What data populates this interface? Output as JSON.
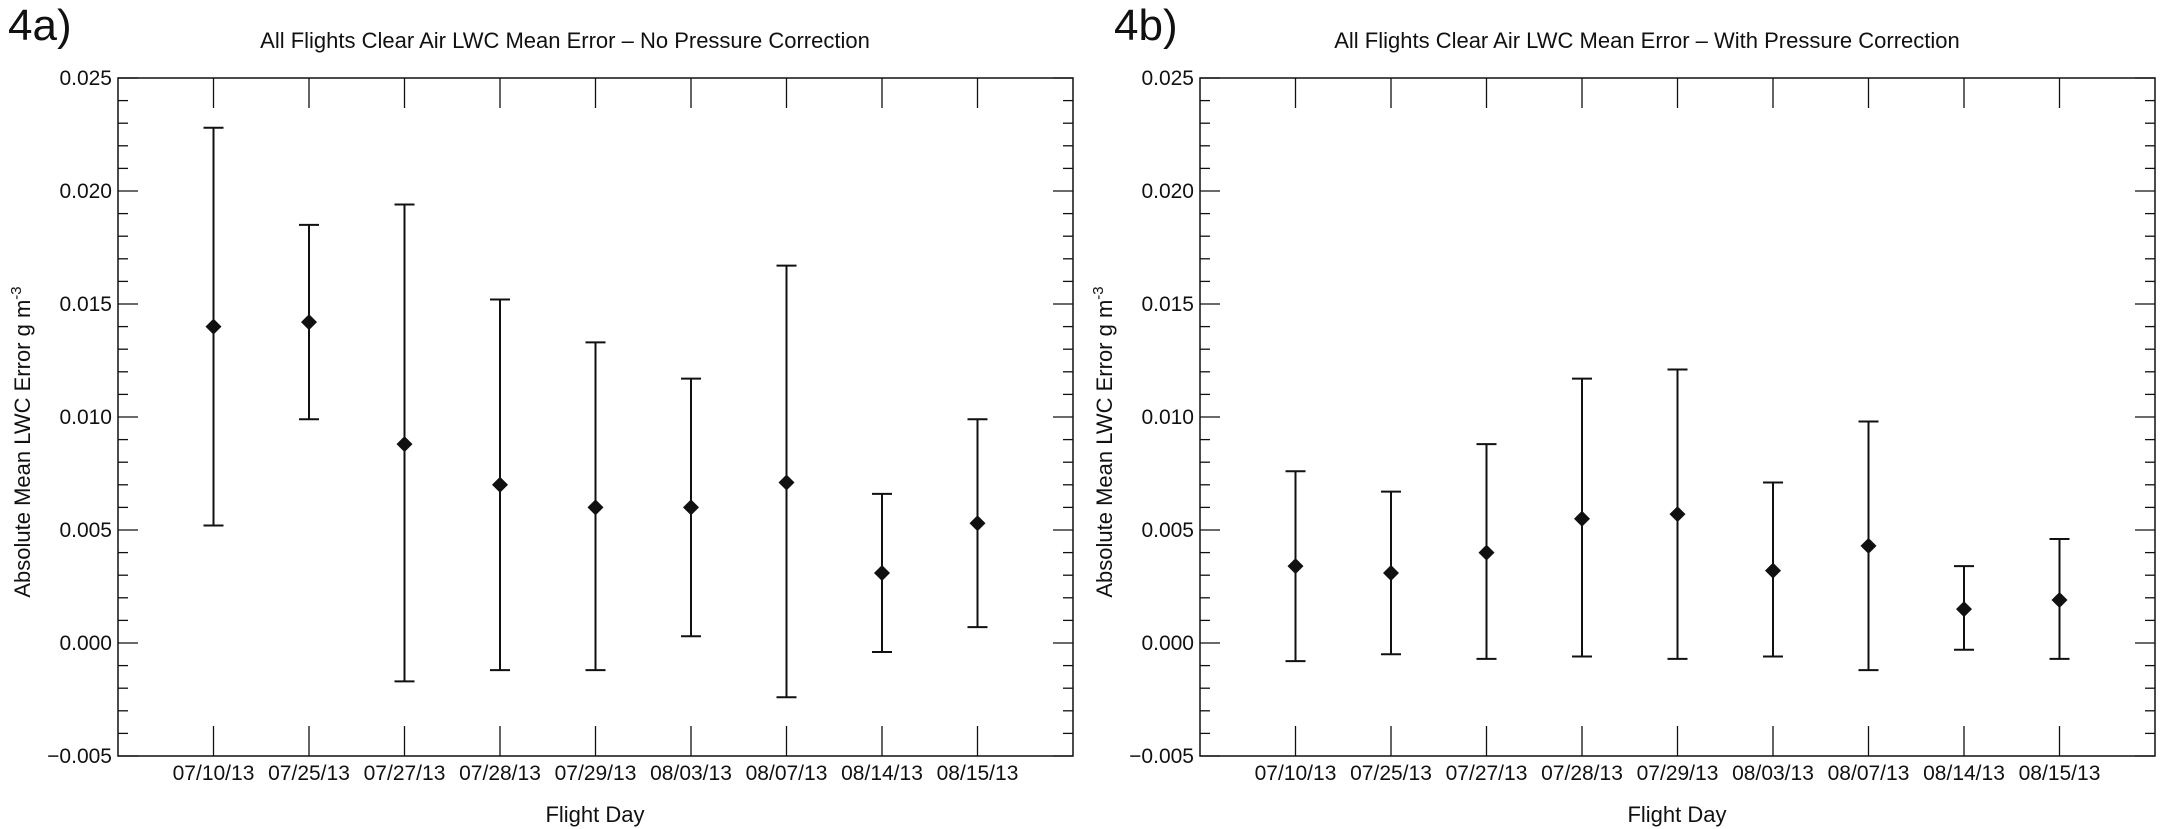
{
  "chart_data": [
    {
      "type": "scatter",
      "panel_label": "4a)",
      "title": "All Flights Clear Air LWC Mean Error – No Pressure Correction",
      "xlabel": "Flight Day",
      "ylabel": "Absolute Mean LWC Error g m",
      "ylabel_exponent": "-3",
      "ylim": [
        -0.005,
        0.025
      ],
      "yticks": [
        "−0.005",
        "0.000",
        "0.005",
        "0.010",
        "0.015",
        "0.020",
        "0.025"
      ],
      "grid": false,
      "error_bars": true,
      "categories": [
        "07/10/13",
        "07/25/13",
        "07/27/13",
        "07/28/13",
        "07/29/13",
        "08/03/13",
        "08/07/13",
        "08/14/13",
        "08/15/13"
      ],
      "values": [
        0.014,
        0.0142,
        0.0088,
        0.007,
        0.006,
        0.006,
        0.0071,
        0.0031,
        0.0053
      ],
      "error_low": [
        0.0052,
        0.0099,
        -0.0017,
        -0.0012,
        -0.0012,
        0.0003,
        -0.0024,
        -0.0004,
        0.0007
      ],
      "error_high": [
        0.0228,
        0.0185,
        0.0194,
        0.0152,
        0.0133,
        0.0117,
        0.0167,
        0.0066,
        0.0099
      ]
    },
    {
      "type": "scatter",
      "panel_label": "4b)",
      "title": "All Flights Clear Air LWC Mean Error – With Pressure Correction",
      "xlabel": "Flight Day",
      "ylabel": "Absolute Mean LWC Error g m",
      "ylabel_exponent": "-3",
      "ylim": [
        -0.005,
        0.025
      ],
      "yticks": [
        "−0.005",
        "0.000",
        "0.005",
        "0.010",
        "0.015",
        "0.020",
        "0.025"
      ],
      "grid": false,
      "error_bars": true,
      "categories": [
        "07/10/13",
        "07/25/13",
        "07/27/13",
        "07/28/13",
        "07/29/13",
        "08/03/13",
        "08/07/13",
        "08/14/13",
        "08/15/13"
      ],
      "values": [
        0.0034,
        0.0031,
        0.004,
        0.0055,
        0.0057,
        0.0032,
        0.0043,
        0.0015,
        0.0019
      ],
      "error_low": [
        -0.0008,
        -0.0005,
        -0.0007,
        -0.0006,
        -0.0007,
        -0.0006,
        -0.0012,
        -0.0003,
        -0.0007
      ],
      "error_high": [
        0.0076,
        0.0067,
        0.0088,
        0.0117,
        0.0121,
        0.0071,
        0.0098,
        0.0034,
        0.0046
      ]
    }
  ]
}
